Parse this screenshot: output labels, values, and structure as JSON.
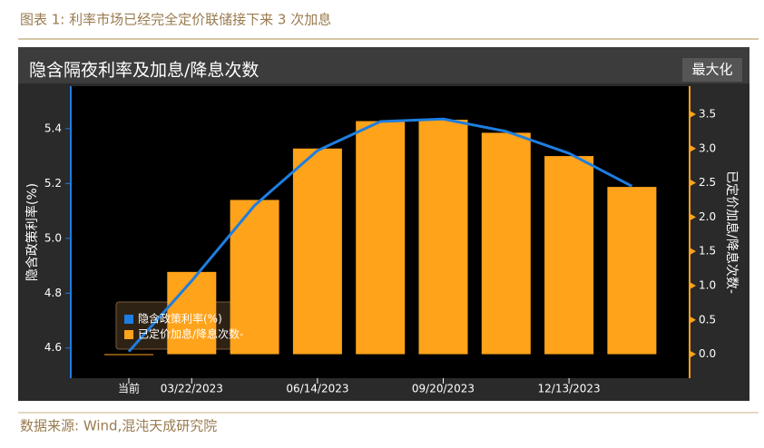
{
  "header": {
    "title": "图表 1:  利率市场已经完全定价联储接下来 3 次加息"
  },
  "footer": {
    "source": "数据来源:  Wind,混沌天成研究院"
  },
  "chart_data": {
    "type": "bar-line",
    "title": "隐含隔夜利率及加息/降息次数",
    "button": "最大化",
    "ylabel": "隐含政策利率(%)",
    "y2label": "已定价加息/降息次数-",
    "categories": [
      "当前",
      "03/22/2023",
      null,
      "06/14/2023",
      null,
      "09/20/2023",
      null,
      "12/13/2023",
      null
    ],
    "series": [
      {
        "name": "隐含政策利率(%)",
        "type": "line",
        "color": "#1e7ee0",
        "values": [
          4.587,
          4.845,
          5.12,
          5.32,
          5.426,
          5.435,
          5.39,
          5.31,
          5.19
        ]
      },
      {
        "name": "已定价加息/降息次数-",
        "type": "bar",
        "axis": "y2",
        "color": "#ffa31a",
        "values": [
          0,
          1.2,
          2.25,
          3.0,
          3.4,
          3.42,
          3.23,
          2.89,
          2.44
        ]
      }
    ],
    "ylim": [
      4.49,
      5.555
    ],
    "yticks": [
      4.6,
      4.8,
      {
        "value": 5.0,
        "label": "5.0"
      },
      5.2,
      5.4
    ],
    "y2lim": [
      -0.35,
      3.91
    ],
    "y2ticks": [
      {
        "value": 0,
        "label": "0.0"
      },
      0.5,
      {
        "value": 1,
        "label": "1.0"
      },
      1.5,
      {
        "value": 2,
        "label": "2.0"
      },
      2.5,
      {
        "value": 3,
        "label": "3.0"
      },
      3.5
    ]
  }
}
